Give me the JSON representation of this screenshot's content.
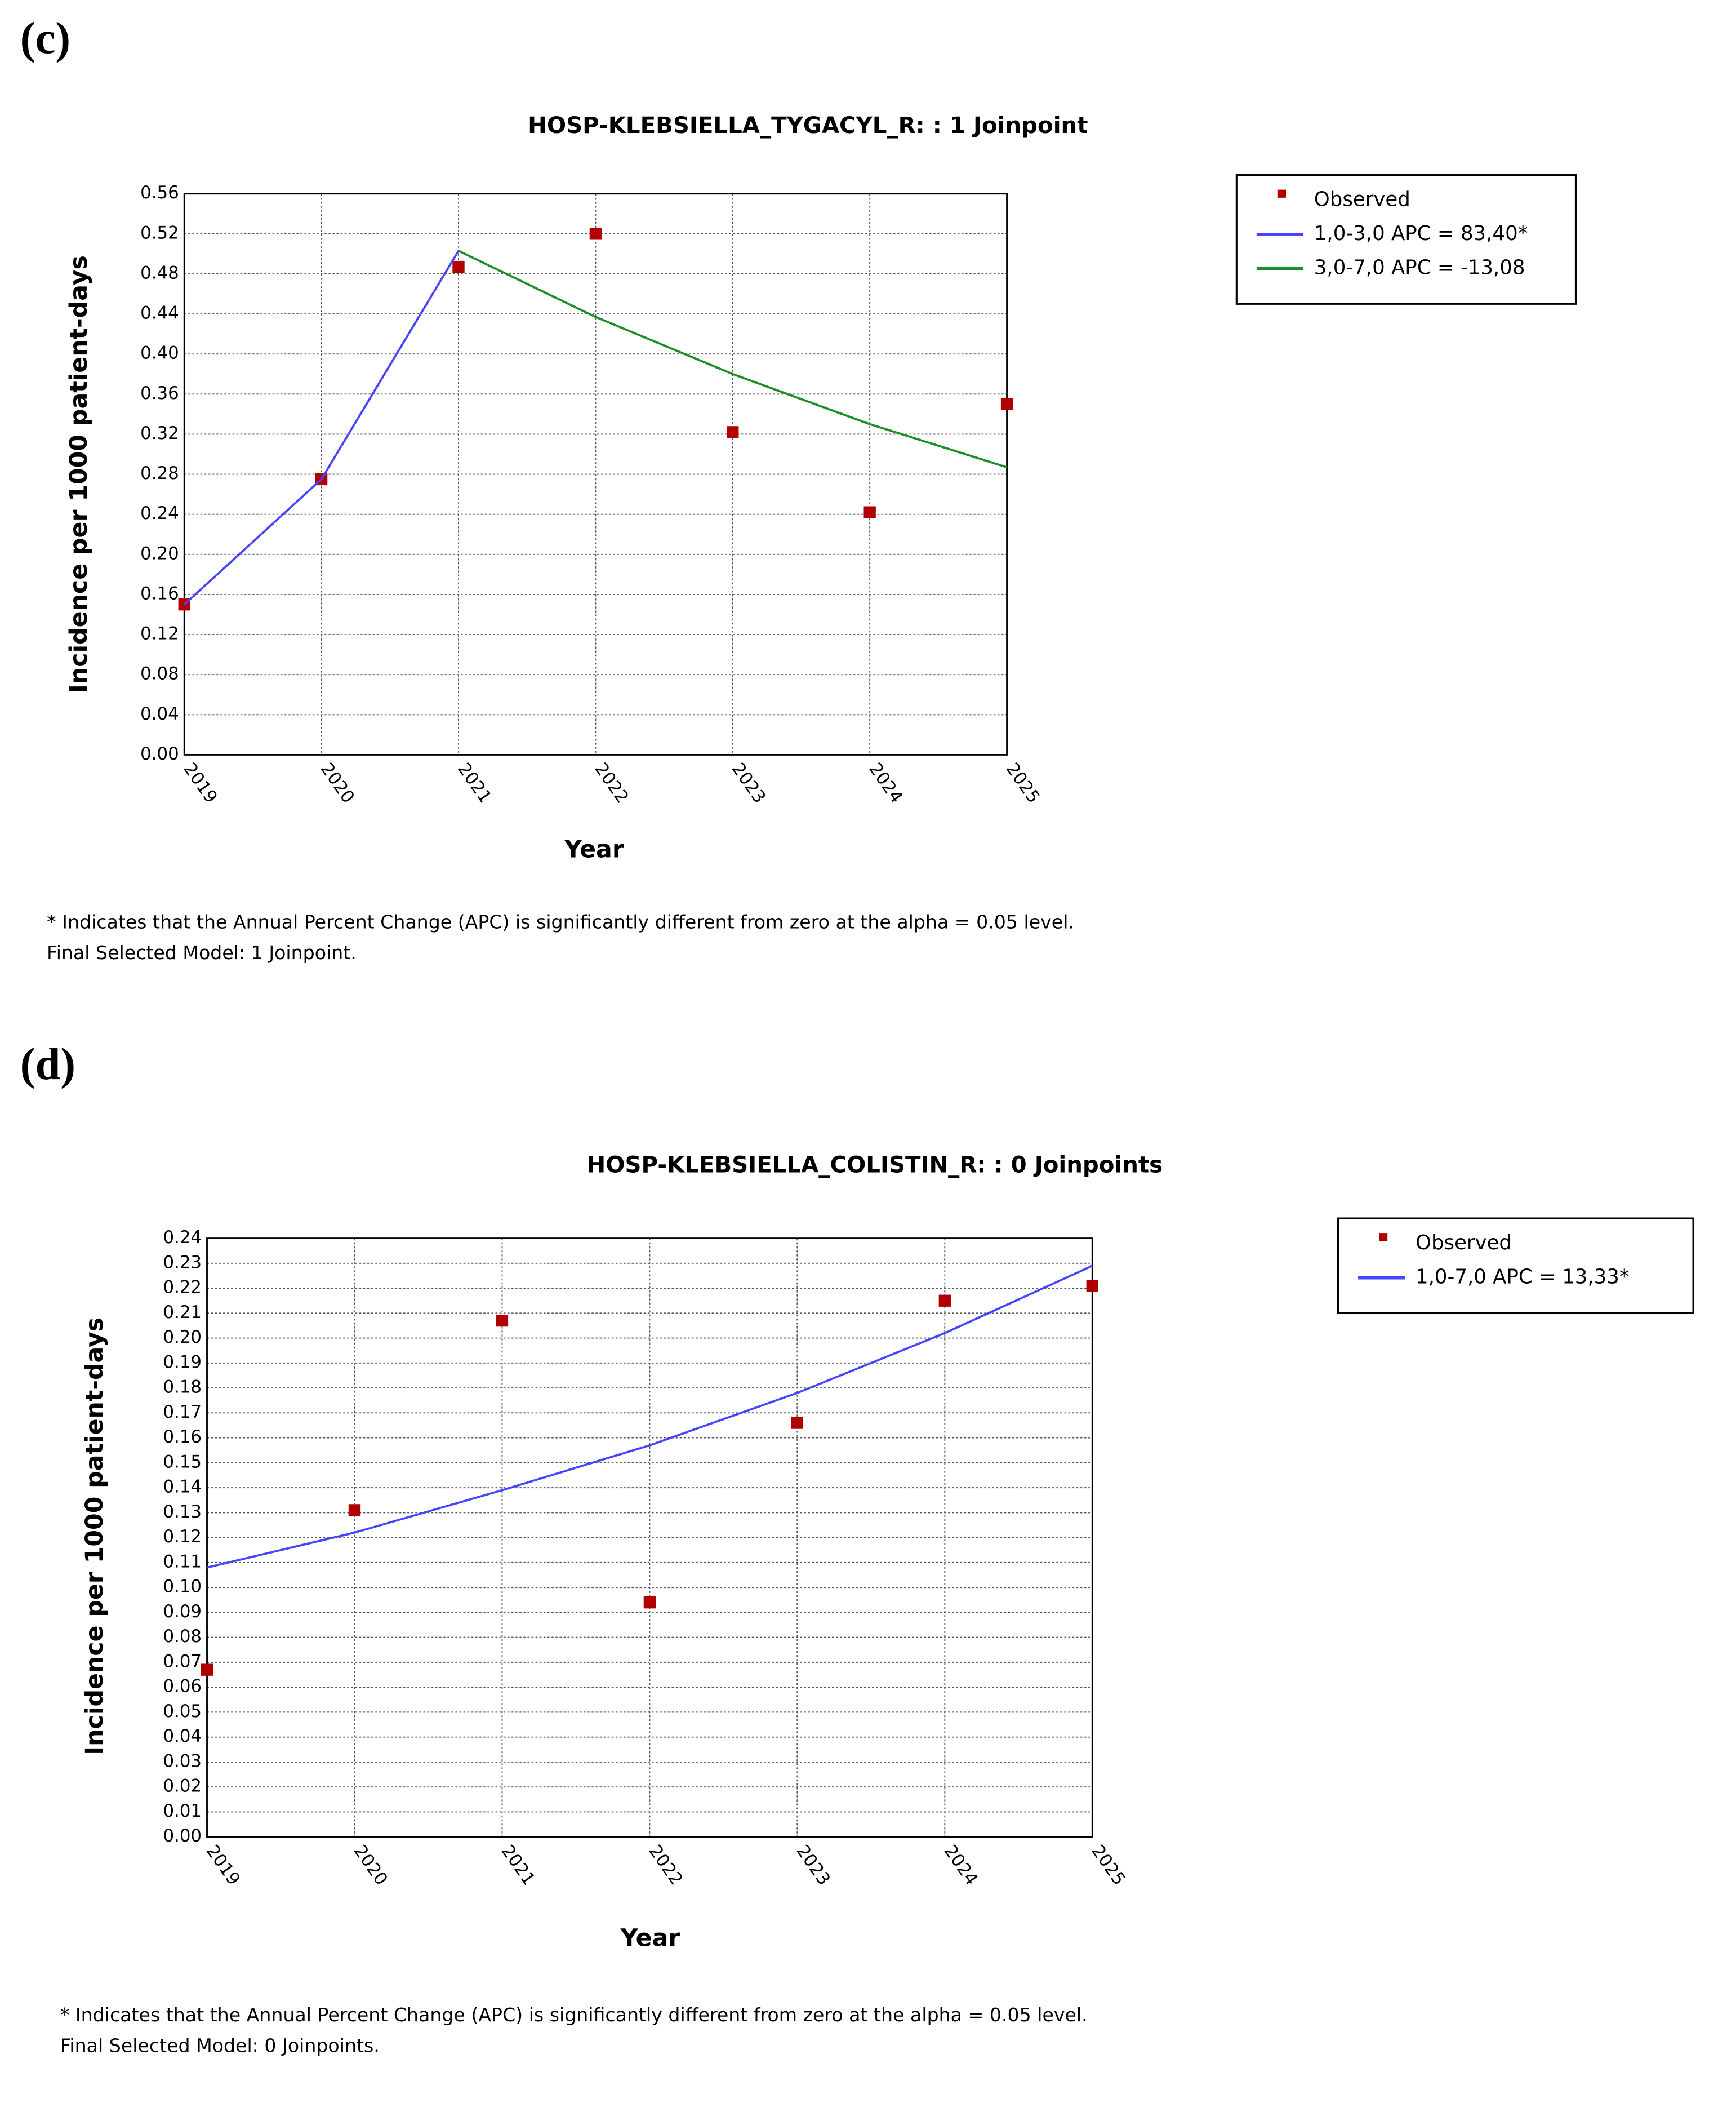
{
  "chart_data": [
    {
      "type": "line",
      "panel_label": "(c)",
      "title": "HOSP-KLEBSIELLA_TYGACYL_R: : 1 Joinpoint",
      "x_label": "Year",
      "y_label": "Incidence per 1000 patient-days",
      "x": [
        2019,
        2020,
        2021,
        2022,
        2023,
        2024,
        2025
      ],
      "xlim": [
        2019,
        2025
      ],
      "xticks": [
        2019,
        2020,
        2021,
        2022,
        2023,
        2024,
        2025
      ],
      "ylim": [
        0,
        0.56
      ],
      "yticks": [
        {
          "value": 0,
          "label": "0.00"
        },
        {
          "value": 0.04,
          "label": "0.04"
        },
        {
          "value": 0.08,
          "label": "0.08"
        },
        {
          "value": 0.12,
          "label": "0.12"
        },
        {
          "value": 0.16,
          "label": "0.16"
        },
        {
          "value": 0.2,
          "label": "0.20"
        },
        {
          "value": 0.24,
          "label": "0.24"
        },
        {
          "value": 0.28,
          "label": "0.28"
        },
        {
          "value": 0.32,
          "label": "0.32"
        },
        {
          "value": 0.36,
          "label": "0.36"
        },
        {
          "value": 0.4,
          "label": "0.40"
        },
        {
          "value": 0.44,
          "label": "0.44"
        },
        {
          "value": 0.48,
          "label": "0.48"
        },
        {
          "value": 0.52,
          "label": "0.52"
        },
        {
          "value": 0.56,
          "label": "0.56"
        }
      ],
      "grid": true,
      "series": [
        {
          "name": "Observed",
          "mode": "markers",
          "color": "#b00000",
          "values": [
            0.15,
            0.275,
            0.487,
            0.52,
            0.322,
            0.242,
            0.35
          ]
        },
        {
          "name": "1,0-3,0 APC  =  83,40*",
          "mode": "lines",
          "color": "#4646ff",
          "values": [
            0.15,
            0.275,
            0.503,
            null,
            null,
            null,
            null
          ]
        },
        {
          "name": "3,0-7,0 APC  =  -13,08",
          "mode": "lines",
          "color": "#1e8c28",
          "values": [
            null,
            null,
            0.503,
            0.437,
            0.38,
            0.33,
            0.287
          ]
        }
      ],
      "footnotes": [
        "* Indicates that the Annual Percent Change (APC) is significantly different from zero at the alpha = 0.05 level.",
        "Final Selected Model: 1 Joinpoint."
      ]
    },
    {
      "type": "line",
      "panel_label": "(d)",
      "title": "HOSP-KLEBSIELLA_COLISTIN_R: : 0 Joinpoints",
      "x_label": "Year",
      "y_label": "Incidence per 1000 patient-days",
      "x": [
        2019,
        2020,
        2021,
        2022,
        2023,
        2024,
        2025
      ],
      "xlim": [
        2019,
        2025
      ],
      "xticks": [
        2019,
        2020,
        2021,
        2022,
        2023,
        2024,
        2025
      ],
      "ylim": [
        0,
        0.24
      ],
      "yticks": [
        {
          "value": 0,
          "label": "0.00"
        },
        {
          "value": 0.01,
          "label": "0.01"
        },
        {
          "value": 0.02,
          "label": "0.02"
        },
        {
          "value": 0.03,
          "label": "0.03"
        },
        {
          "value": 0.04,
          "label": "0.04"
        },
        {
          "value": 0.05,
          "label": "0.05"
        },
        {
          "value": 0.06,
          "label": "0.06"
        },
        {
          "value": 0.07,
          "label": "0.07"
        },
        {
          "value": 0.08,
          "label": "0.08"
        },
        {
          "value": 0.09,
          "label": "0.09"
        },
        {
          "value": 0.1,
          "label": "0.10"
        },
        {
          "value": 0.11,
          "label": "0.11"
        },
        {
          "value": 0.12,
          "label": "0.12"
        },
        {
          "value": 0.13,
          "label": "0.13"
        },
        {
          "value": 0.14,
          "label": "0.14"
        },
        {
          "value": 0.15,
          "label": "0.15"
        },
        {
          "value": 0.16,
          "label": "0.16"
        },
        {
          "value": 0.17,
          "label": "0.17"
        },
        {
          "value": 0.18,
          "label": "0.18"
        },
        {
          "value": 0.19,
          "label": "0.19"
        },
        {
          "value": 0.2,
          "label": "0.20"
        },
        {
          "value": 0.21,
          "label": "0.21"
        },
        {
          "value": 0.22,
          "label": "0.22"
        },
        {
          "value": 0.23,
          "label": "0.23"
        },
        {
          "value": 0.24,
          "label": "0.24"
        }
      ],
      "grid": true,
      "series": [
        {
          "name": "Observed",
          "mode": "markers",
          "color": "#b00000",
          "values": [
            0.067,
            0.131,
            0.207,
            0.094,
            0.166,
            0.215,
            0.221
          ]
        },
        {
          "name": "1,0-7,0 APC  = 13,33*",
          "mode": "lines",
          "color": "#4646ff",
          "values": [
            0.108,
            0.122,
            0.139,
            0.157,
            0.178,
            0.202,
            0.229
          ]
        }
      ],
      "footnotes": [
        "* Indicates that the Annual Percent Change (APC) is significantly different from zero at the alpha = 0.05 level.",
        "Final Selected Model: 0 Joinpoints."
      ]
    }
  ]
}
